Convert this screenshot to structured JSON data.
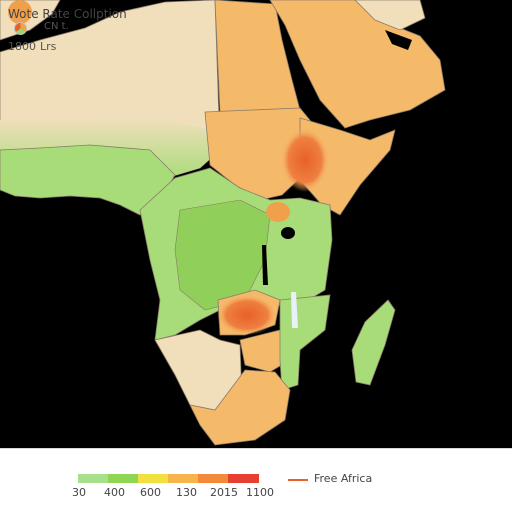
{
  "legend": {
    "title": "Wote Rate Collption",
    "label_top": "CN",
    "label_mid": "t.",
    "label_bottom": "Lrs",
    "label_left": "1800",
    "ticks": [
      "30",
      "400",
      "600",
      "130",
      "2015",
      "1100"
    ],
    "colors": [
      "#a6e08a",
      "#8fd655",
      "#f2e040",
      "#f6b44a",
      "#f28a3a",
      "#e84030"
    ],
    "line_label": "Free Africa",
    "line_color": "#e8602a"
  },
  "map": {
    "colors": {
      "sea": "#000000",
      "tan": "#f1dfbc",
      "orange": "#f5b96a",
      "deep_orange": "#f0a04a",
      "hotspot": "#e8602a",
      "green": "#a8dc78",
      "deep_green": "#8fcf5a",
      "border": "#8a7a68"
    }
  }
}
